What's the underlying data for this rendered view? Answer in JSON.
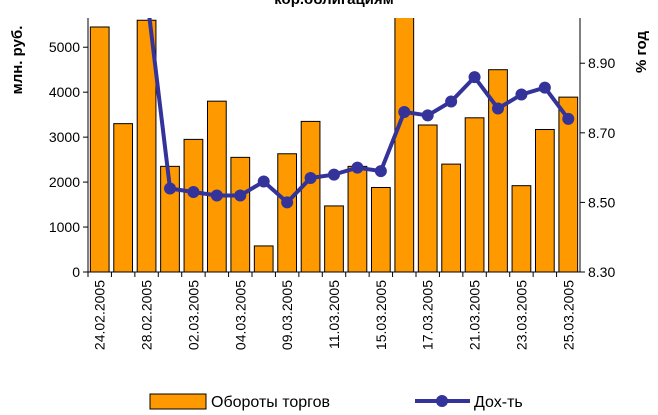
{
  "chart_data": {
    "type": "bar_line",
    "title": "кор.облигациям",
    "ylabel": "млн. руб.",
    "y2label": "% год",
    "categories": [
      "24.02.2005",
      null,
      "28.02.2005",
      null,
      "02.03.2005",
      null,
      "04.03.2005",
      null,
      "09.03.2005",
      null,
      "11.03.2005",
      null,
      "15.03.2005",
      null,
      "17.03.2005",
      null,
      "21.03.2005",
      null,
      "23.03.2005",
      null,
      "25.03.2005"
    ],
    "series": [
      {
        "name": "Обороты торгов",
        "color": "#ff9900",
        "values": [
          5450,
          3300,
          5600,
          2350,
          2950,
          3800,
          2550,
          580,
          2630,
          3350,
          1470,
          2350,
          1880,
          5800,
          3270,
          2400,
          3430,
          4500,
          1920,
          3170,
          3890
        ]
      },
      {
        "name": "Дох-ть",
        "color": "#333399",
        "axis": "y2",
        "values": [
          null,
          null,
          9.1,
          8.54,
          8.53,
          8.52,
          8.52,
          8.56,
          8.5,
          8.57,
          8.58,
          8.6,
          8.59,
          8.76,
          8.75,
          8.79,
          8.86,
          8.77,
          8.81,
          8.83,
          8.74
        ]
      }
    ],
    "ylim": [
      0,
      5650
    ],
    "yticks": [
      0,
      1000,
      2000,
      3000,
      4000,
      5000
    ],
    "y2lim": [
      8.3,
      9.03
    ],
    "y2ticks": [
      {
        "value": 8.3,
        "label": "8.30"
      },
      {
        "value": 8.5,
        "label": "8.50"
      },
      {
        "value": 8.7,
        "label": "8.70"
      },
      {
        "value": 8.9,
        "label": "8.90"
      }
    ]
  }
}
